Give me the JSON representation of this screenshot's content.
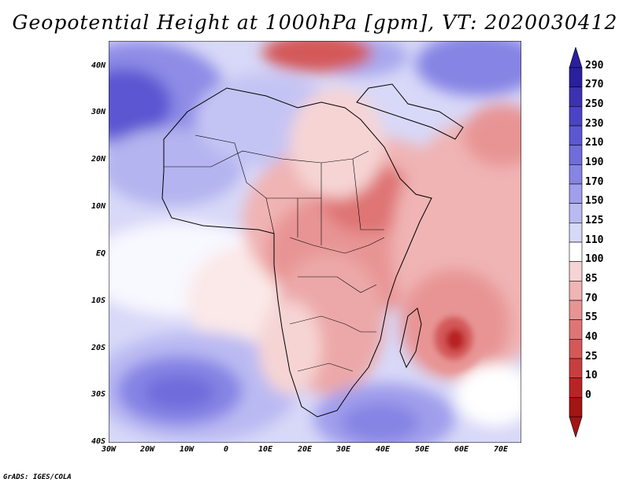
{
  "title": "Geopotential Height at 1000hPa [gpm], VT: 2020030412",
  "footer": "GrADS: IGES/COLA",
  "axes": {
    "lat_labels": [
      "40N",
      "30N",
      "20N",
      "10N",
      "EQ",
      "10S",
      "20S",
      "30S",
      "40S"
    ],
    "lon_labels": [
      "30W",
      "20W",
      "10W",
      "0",
      "10E",
      "20E",
      "30E",
      "40E",
      "50E",
      "60E",
      "70E"
    ]
  },
  "colorbar": {
    "levels": [
      "290",
      "270",
      "250",
      "230",
      "210",
      "190",
      "170",
      "150",
      "125",
      "110",
      "100",
      "85",
      "70",
      "55",
      "40",
      "25",
      "10",
      "0"
    ],
    "colors": [
      "#2a1f9e",
      "#3a32b0",
      "#4a44c4",
      "#5b57d2",
      "#6f6cdc",
      "#8684e4",
      "#a09fec",
      "#babaf3",
      "#d8d8f8",
      "#ffffff",
      "#f6d4d4",
      "#f0b4b4",
      "#e89494",
      "#df7474",
      "#d45858",
      "#c83e3e",
      "#b82424",
      "#a31414"
    ]
  },
  "regions": [
    {
      "name": "south-atlantic-high",
      "color": "#8080e0"
    },
    {
      "name": "indian-ocean-low",
      "color": "#c83e3e"
    }
  ]
}
